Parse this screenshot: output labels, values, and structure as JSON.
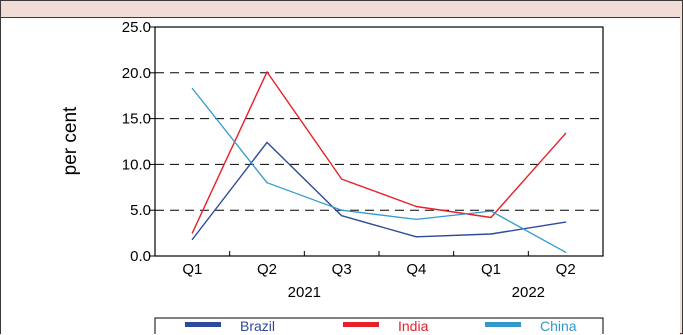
{
  "chart_data": {
    "type": "line",
    "categories": [
      "Q1",
      "Q2",
      "Q3",
      "Q4",
      "Q1",
      "Q2"
    ],
    "year_labels": [
      "2021",
      "2022"
    ],
    "ylabel": "per cent",
    "ylim": [
      0,
      25
    ],
    "yticks": [
      "0.0",
      "5.0",
      "10.0",
      "15.0",
      "20.0",
      "25.0"
    ],
    "gridlines": "dashed-horizontal",
    "legend_position": "bottom",
    "series": [
      {
        "name": "Brazil",
        "color": "#2e4a9a",
        "values": [
          1.8,
          12.4,
          4.4,
          2.1,
          2.4,
          3.7
        ]
      },
      {
        "name": "India",
        "color": "#e8202a",
        "values": [
          2.5,
          20.1,
          8.4,
          5.4,
          4.2,
          13.4
        ]
      },
      {
        "name": "China",
        "color": "#3399cc",
        "values": [
          18.3,
          8.0,
          5.0,
          4.0,
          4.9,
          0.4
        ]
      }
    ]
  }
}
